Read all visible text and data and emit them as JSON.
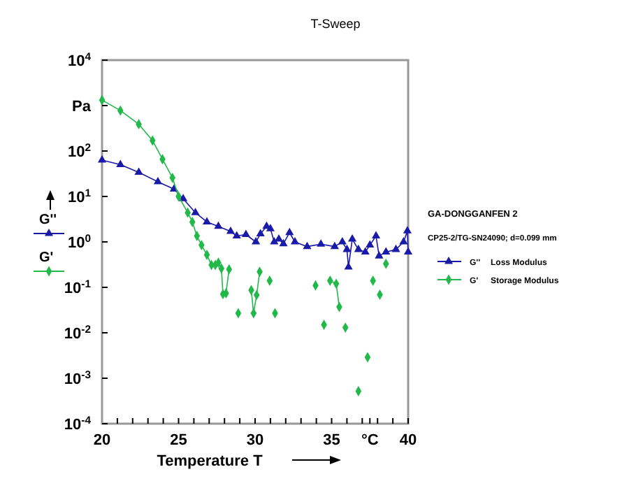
{
  "chart_data": {
    "type": "line",
    "title": "T-Sweep",
    "xlabel": "Temperature T",
    "log": "y",
    "grid": false,
    "legend": "right",
    "line_style": "solid",
    "xlim": [
      20,
      40
    ],
    "ylim": [
      0.0001,
      10000
    ],
    "xticks": [
      20,
      {
        "value": 21,
        "label": null
      },
      {
        "value": 22,
        "label": null
      },
      {
        "value": 23,
        "label": null
      },
      {
        "value": 24,
        "label": null
      },
      25,
      {
        "value": 26,
        "label": null
      },
      {
        "value": 27,
        "label": null
      },
      {
        "value": 28,
        "label": null
      },
      {
        "value": 29,
        "label": null
      },
      30,
      {
        "value": 31,
        "label": null
      },
      {
        "value": 32,
        "label": null
      },
      {
        "value": 33,
        "label": null
      },
      {
        "value": 34,
        "label": null
      },
      35,
      {
        "value": 36,
        "label": null
      },
      {
        "value": 37,
        "label": null
      },
      {
        "value": 37.5,
        "label": "°C"
      },
      {
        "value": 38,
        "label": null
      },
      {
        "value": 39,
        "label": null
      },
      40
    ],
    "yticks": [
      {
        "value": 0.0001,
        "label": "10$^{-4}$"
      },
      {
        "value": 0.001,
        "label": "10$^{-3}$"
      },
      {
        "value": 0.01,
        "label": "10$^{-2}$"
      },
      {
        "value": 0.1,
        "label": "10$^{-1}$"
      },
      {
        "value": 1,
        "label": "10$^{0}$"
      },
      {
        "value": 10,
        "label": "10$^{1}$"
      },
      {
        "value": 100,
        "label": "10$^{2}$"
      },
      {
        "value": 1000,
        "label": "Pa"
      },
      {
        "value": 10000,
        "label": "10$^{4}$"
      }
    ],
    "annotations": [
      "GA-DONGGANFEN 2",
      "CP25-2/TG-SN24090; d=0.099 mm",
      "Loss Modulus",
      "Storage Modulus"
    ],
    "series": [
      {
        "name": "G''",
        "color": "#1a1aa8",
        "marker": "triangle",
        "x": [
          20,
          21.2,
          22.4,
          23.65,
          24.7,
          25.3,
          26.1,
          26.85,
          27.6,
          28.4,
          28.8,
          29.4,
          30.05,
          30.35,
          30.75,
          31.0,
          31.25,
          31.55,
          31.85,
          32.25,
          32.6,
          33.4,
          34.3,
          35.2,
          35.7,
          36.0,
          36.1,
          36.35,
          36.75,
          37.2,
          37.5,
          37.9,
          38.1,
          38.55,
          39.2,
          39.7,
          39.95,
          40
        ],
        "values": [
          63,
          50,
          34,
          21,
          14.5,
          8.9,
          4.4,
          2.75,
          2.2,
          1.7,
          1.35,
          1.45,
          1.0,
          1.5,
          2.2,
          1.95,
          1.0,
          1.15,
          0.91,
          1.6,
          1.0,
          0.79,
          0.89,
          0.79,
          1.0,
          0.68,
          0.28,
          1.15,
          0.68,
          0.6,
          0.85,
          1.35,
          0.49,
          0.6,
          0.68,
          1.0,
          1.74,
          0.6
        ]
      },
      {
        "name": "G'",
        "color": "#22b84a",
        "marker": "diamond",
        "x": [
          20,
          21.2,
          22.4,
          23.3,
          23.95,
          24.6,
          25.0,
          25.6,
          25.9,
          26.2,
          26.5,
          26.85,
          27.15,
          27.4,
          27.6,
          27.8,
          27.9,
          28.1,
          28.3,
          28.6,
          28.9,
          29.3,
          29.75,
          29.9,
          30.1,
          30.3,
          30.6,
          30.95,
          31.1,
          31.3,
          32.5,
          33.95,
          34.2,
          34.5,
          34.7,
          34.9,
          35.3,
          35.5,
          35.7,
          35.9,
          36.3,
          36.75,
          37.0,
          37.35,
          37.5,
          37.7,
          37.9,
          38.15,
          38.3,
          38.55
        ],
        "values": [
          1320,
          776,
          389,
          170,
          66,
          25.7,
          10,
          4.4,
          2.75,
          1.35,
          0.85,
          0.52,
          0.31,
          0.31,
          0.35,
          0.26,
          0.071,
          0.074,
          0.25,
          null,
          0.027,
          null,
          0.087,
          0.027,
          0.068,
          0.22,
          null,
          0.14,
          null,
          0.027,
          null,
          0.11,
          null,
          0.015,
          null,
          0.14,
          0.12,
          0.037,
          null,
          0.013,
          null,
          0.00052,
          null,
          0.0029,
          null,
          0.14,
          null,
          0.069,
          null,
          0.33
        ]
      }
    ]
  }
}
